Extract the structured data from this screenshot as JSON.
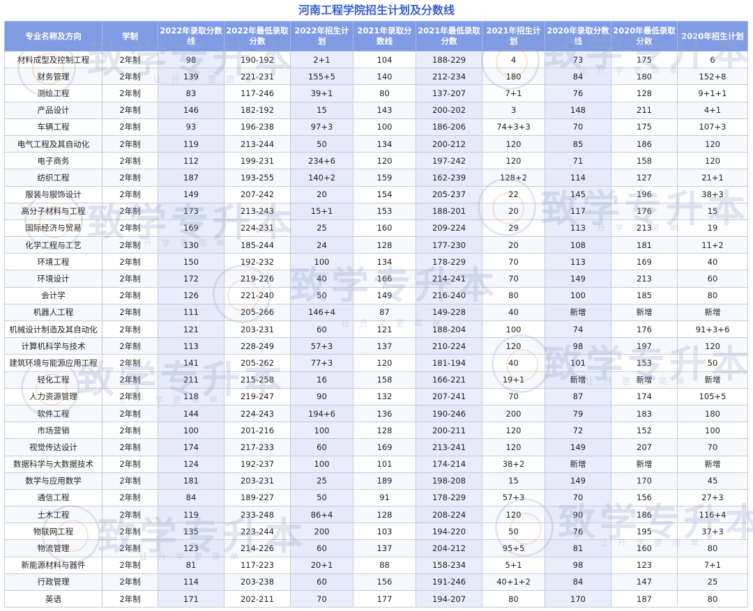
{
  "title": "河南工程学院招生计划及分数线",
  "headers": [
    "专业名称及方向",
    "学制",
    "2022年录取分数线",
    "2022年最低录取分数",
    "2022年招生计划",
    "2021年录取分数线",
    "2021年最低录取分数",
    "2021年招生计划",
    "2020年录取分数线",
    "2020年最低录取分数",
    "2020年招生计划"
  ],
  "rows": [
    [
      "材料成型及控制工程",
      "2年制",
      "98",
      "190-192",
      "2+1",
      "104",
      "188-229",
      "4",
      "73",
      "175",
      "6"
    ],
    [
      "财务管理",
      "2年制",
      "139",
      "221-231",
      "155+5",
      "140",
      "212-234",
      "180",
      "84",
      "180",
      "152+8"
    ],
    [
      "测绘工程",
      "2年制",
      "83",
      "117-246",
      "39+1",
      "80",
      "137-207",
      "7+1",
      "76",
      "128",
      "9+1+1"
    ],
    [
      "产品设计",
      "2年制",
      "146",
      "182-192",
      "15",
      "143",
      "200-202",
      "3",
      "148",
      "211",
      "4+1"
    ],
    [
      "车辆工程",
      "2年制",
      "93",
      "196-238",
      "97+3",
      "100",
      "186-206",
      "74+3+3",
      "70",
      "175",
      "107+3"
    ],
    [
      "电气工程及其自动化",
      "2年制",
      "119",
      "213-244",
      "50",
      "134",
      "200-212",
      "120",
      "85",
      "186",
      "120"
    ],
    [
      "电子商务",
      "2年制",
      "112",
      "199-231",
      "234+6",
      "120",
      "197-242",
      "120",
      "71",
      "158",
      "120"
    ],
    [
      "纺织工程",
      "2年制",
      "187",
      "193-255",
      "140+2",
      "159",
      "162-239",
      "128+2",
      "114",
      "127",
      "21+1"
    ],
    [
      "服装与服饰设计",
      "2年制",
      "149",
      "207-242",
      "20",
      "154",
      "205-237",
      "22",
      "145",
      "196",
      "38+3"
    ],
    [
      "高分子材料与工程",
      "2年制",
      "173",
      "213-243",
      "15+1",
      "153",
      "188-201",
      "20",
      "117",
      "176",
      "15"
    ],
    [
      "国际经济与贸易",
      "2年制",
      "169",
      "224-231",
      "25",
      "160",
      "209-224",
      "29",
      "113",
      "213",
      "19"
    ],
    [
      "化学工程与工艺",
      "2年制",
      "130",
      "185-244",
      "24",
      "128",
      "177-230",
      "20",
      "108",
      "181",
      "11+2"
    ],
    [
      "环境工程",
      "2年制",
      "150",
      "192-232",
      "100",
      "134",
      "178-229",
      "70",
      "113",
      "169",
      "40"
    ],
    [
      "环境设计",
      "2年制",
      "172",
      "219-226",
      "40",
      "166",
      "214-241",
      "70",
      "149",
      "213",
      "60"
    ],
    [
      "会计学",
      "2年制",
      "126",
      "221-240",
      "50",
      "149",
      "216-240",
      "80",
      "100",
      "185",
      "80"
    ],
    [
      "机器人工程",
      "2年制",
      "111",
      "205-266",
      "146+4",
      "87",
      "149-228",
      "40",
      "新增",
      "新增",
      "新增"
    ],
    [
      "机械设计制造及其自动化",
      "2年制",
      "121",
      "203-231",
      "60",
      "121",
      "188-204",
      "100",
      "74",
      "176",
      "91+3+6"
    ],
    [
      "计算机科学与技术",
      "2年制",
      "113",
      "228-249",
      "57+3",
      "137",
      "210-224",
      "120",
      "98",
      "197",
      "120"
    ],
    [
      "建筑环境与能源应用工程",
      "2年制",
      "141",
      "205-262",
      "77+3",
      "120",
      "181-194",
      "40",
      "101",
      "153",
      "50"
    ],
    [
      "轻化工程",
      "2年制",
      "211",
      "215-258",
      "16",
      "158",
      "166-221",
      "19+1",
      "新增",
      "新增",
      "新增"
    ],
    [
      "人力资源管理",
      "2年制",
      "118",
      "219-247",
      "90",
      "132",
      "207-241",
      "70",
      "87",
      "174",
      "105+5"
    ],
    [
      "软件工程",
      "2年制",
      "144",
      "224-243",
      "194+6",
      "136",
      "190-246",
      "200",
      "79",
      "183",
      "180"
    ],
    [
      "市场营销",
      "2年制",
      "100",
      "201-216",
      "100",
      "128",
      "200-211",
      "120",
      "72",
      "152",
      "100"
    ],
    [
      "视觉传达设计",
      "2年制",
      "174",
      "217-233",
      "60",
      "169",
      "213-241",
      "120",
      "149",
      "207",
      "70"
    ],
    [
      "数据科学与大数据技术",
      "2年制",
      "124",
      "192-237",
      "100",
      "101",
      "174-214",
      "38+2",
      "新增",
      "新增",
      "新增"
    ],
    [
      "数学与应用数学",
      "2年制",
      "181",
      "203-231",
      "25",
      "189",
      "198-208",
      "15",
      "149",
      "170",
      "45"
    ],
    [
      "通信工程",
      "2年制",
      "84",
      "189-227",
      "50",
      "91",
      "178-229",
      "57+3",
      "70",
      "156",
      "27+3"
    ],
    [
      "土木工程",
      "2年制",
      "119",
      "233-248",
      "86+4",
      "128",
      "208-224",
      "120",
      "90",
      "186",
      "116+4"
    ],
    [
      "物联网工程",
      "2年制",
      "135",
      "223-244",
      "200",
      "103",
      "194-220",
      "50",
      "76",
      "195",
      "37+3"
    ],
    [
      "物流管理",
      "2年制",
      "123",
      "214-226",
      "60",
      "137",
      "204-212",
      "95+5",
      "81",
      "160",
      "80"
    ],
    [
      "新能源材料与器件",
      "2年制",
      "81",
      "117-223",
      "20+1",
      "88",
      "158-234",
      "5+1",
      "98",
      "123",
      "7+1"
    ],
    [
      "行政管理",
      "2年制",
      "114",
      "203-238",
      "60",
      "156",
      "191-246",
      "40+1+2",
      "84",
      "147",
      "25"
    ],
    [
      "英语",
      "2年制",
      "171",
      "202-211",
      "70",
      "177",
      "194-207",
      "80",
      "170",
      "187",
      "80"
    ]
  ],
  "watermark": {
    "text": "致学专升本",
    "sub": "让升学更简单"
  },
  "colors": {
    "title": "#3a5fcd",
    "header_bg": "#7f9be3",
    "header_text": "#ffffff",
    "stripe": "#e8eefb"
  }
}
